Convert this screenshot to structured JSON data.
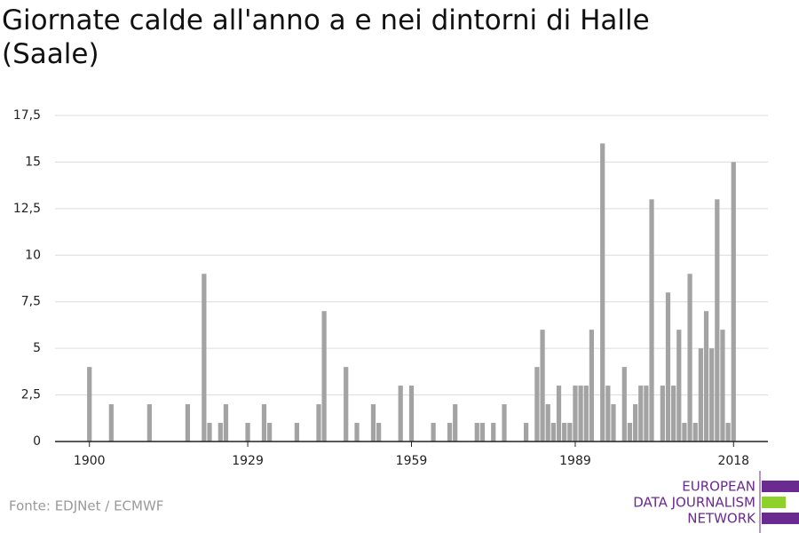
{
  "chart_data": {
    "type": "bar",
    "title": "Giornate calde all'anno a e nei dintorni di Halle (Saale)",
    "x": [
      1900,
      1904,
      1911,
      1918,
      1921,
      1922,
      1924,
      1925,
      1929,
      1932,
      1933,
      1938,
      1942,
      1943,
      1947,
      1949,
      1952,
      1953,
      1957,
      1959,
      1963,
      1966,
      1967,
      1971,
      1972,
      1974,
      1976,
      1980,
      1982,
      1983,
      1984,
      1985,
      1986,
      1987,
      1988,
      1989,
      1990,
      1991,
      1992,
      1994,
      1995,
      1996,
      1998,
      1999,
      2000,
      2001,
      2002,
      2003,
      2005,
      2006,
      2007,
      2008,
      2009,
      2010,
      2011,
      2012,
      2013,
      2014,
      2015,
      2016,
      2017,
      2018
    ],
    "values": [
      4,
      2,
      2,
      2,
      9,
      1,
      1,
      2,
      1,
      2,
      1,
      1,
      2,
      7,
      4,
      1,
      2,
      1,
      3,
      3,
      1,
      1,
      2,
      1,
      1,
      1,
      2,
      1,
      4,
      6,
      2,
      1,
      3,
      1,
      1,
      3,
      3,
      3,
      6,
      16,
      3,
      2,
      4,
      1,
      2,
      3,
      3,
      13,
      3,
      8,
      3,
      6,
      1,
      9,
      1,
      5,
      7,
      5,
      13,
      6,
      1,
      15
    ],
    "color": "#a3a3a3",
    "xlim": [
      1893.7,
      2024.3
    ],
    "xticks": [
      1900,
      1929,
      1959,
      1989,
      2018
    ],
    "ylim": [
      0,
      17.5
    ],
    "yticks": [
      0,
      {
        "value": 2.5,
        "label": "2,5"
      },
      5,
      {
        "value": 7.5,
        "label": "7,5"
      },
      10,
      {
        "value": 12.5,
        "label": "12,5"
      },
      15,
      {
        "value": 17.5,
        "label": "17,5"
      }
    ],
    "grid": true
  },
  "source": "Fonte: EDJNet / ECMWF",
  "logo": [
    "EUROPEAN",
    "DATA JOURNALISM",
    "NETWORK"
  ]
}
